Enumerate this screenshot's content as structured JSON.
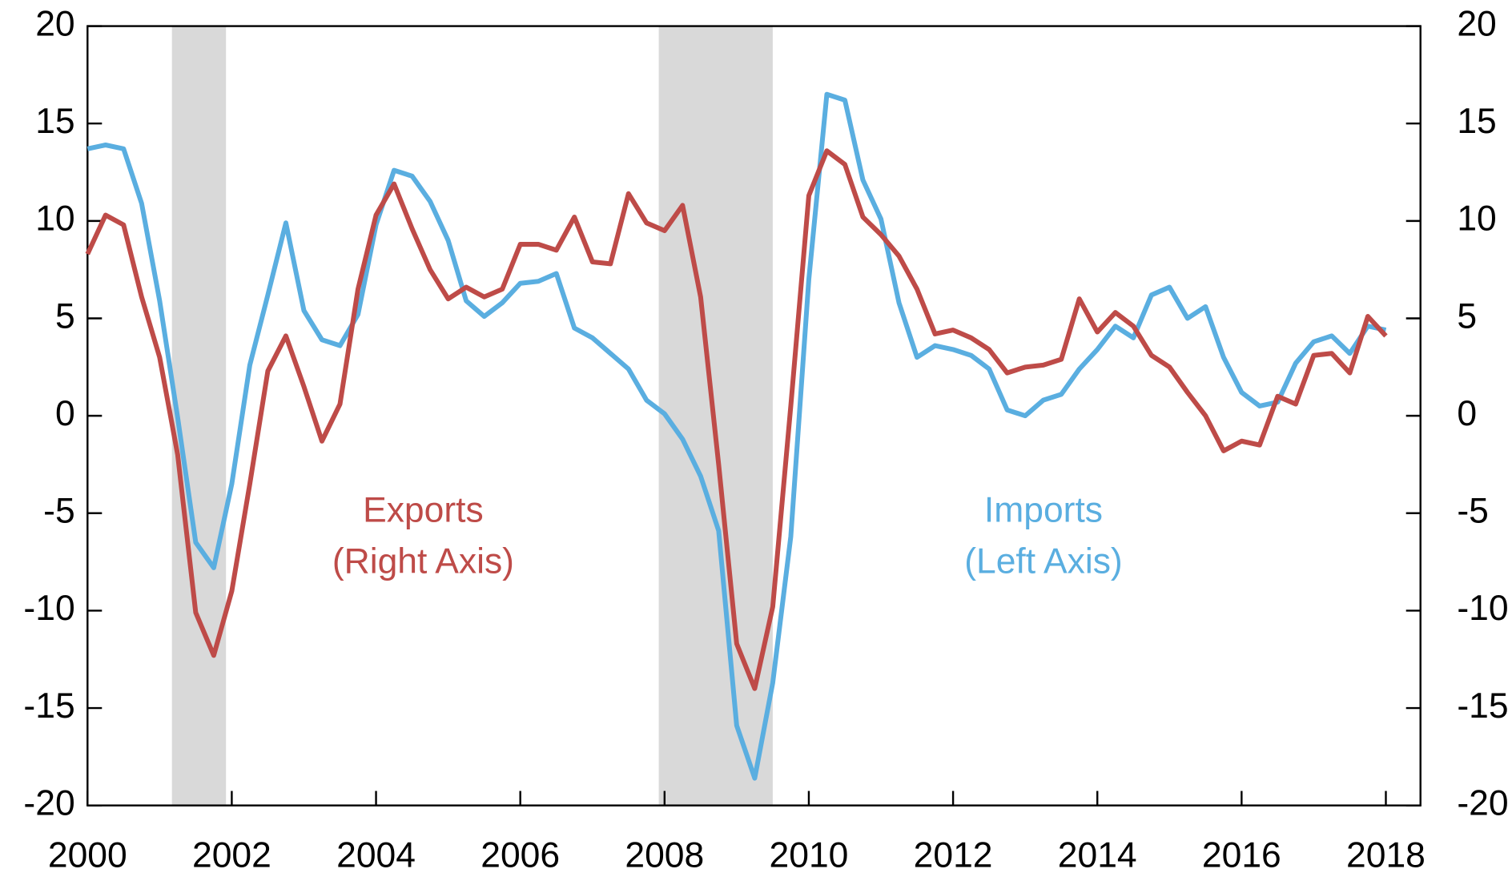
{
  "chart_data": {
    "type": "line",
    "x": [
      2000,
      2000.25,
      2000.5,
      2000.75,
      2001,
      2001.25,
      2001.5,
      2001.75,
      2002,
      2002.25,
      2002.5,
      2002.75,
      2003,
      2003.25,
      2003.5,
      2003.75,
      2004,
      2004.25,
      2004.5,
      2004.75,
      2005,
      2005.25,
      2005.5,
      2005.75,
      2006,
      2006.25,
      2006.5,
      2006.75,
      2007,
      2007.25,
      2007.5,
      2007.75,
      2008,
      2008.25,
      2008.5,
      2008.75,
      2009,
      2009.25,
      2009.5,
      2009.75,
      2010,
      2010.25,
      2010.5,
      2010.75,
      2011,
      2011.25,
      2011.5,
      2011.75,
      2012,
      2012.25,
      2012.5,
      2012.75,
      2013,
      2013.25,
      2013.5,
      2013.75,
      2014,
      2014.25,
      2014.5,
      2014.75,
      2015,
      2015.25,
      2015.5,
      2015.75,
      2016,
      2016.25,
      2016.5,
      2016.75,
      2017,
      2017.25,
      2017.5,
      2017.75,
      2018
    ],
    "series": [
      {
        "name": "Imports",
        "color": "#5aaee0",
        "axis": "y",
        "values": [
          13.7,
          13.9,
          13.7,
          10.9,
          5.9,
          -0.1,
          -6.5,
          -7.8,
          -3.5,
          2.6,
          6.2,
          9.9,
          5.4,
          3.9,
          3.6,
          5.2,
          9.8,
          12.6,
          12.3,
          11.0,
          9.0,
          5.9,
          5.1,
          5.8,
          6.8,
          6.9,
          7.3,
          4.5,
          4.0,
          3.2,
          2.4,
          0.8,
          0.1,
          -1.2,
          -3.1,
          -5.9,
          -15.9,
          -18.6,
          -13.7,
          -6.2,
          7.0,
          16.5,
          16.2,
          12.1,
          10.1,
          5.8,
          3.0,
          3.6,
          3.4,
          3.1,
          2.4,
          0.3,
          0.0,
          0.8,
          1.1,
          2.4,
          3.4,
          4.6,
          4.0,
          6.2,
          6.6,
          5.0,
          5.6,
          3.0,
          1.2,
          0.5,
          0.7,
          2.7,
          3.8,
          4.1,
          3.2,
          4.6,
          4.4
        ]
      },
      {
        "name": "Exports",
        "color": "#be4b48",
        "axis": "y2",
        "values": [
          8.3,
          10.3,
          9.8,
          6.1,
          3.0,
          -2.0,
          -10.1,
          -12.3,
          -9.0,
          -3.5,
          2.3,
          4.1,
          1.5,
          -1.3,
          0.6,
          6.5,
          10.3,
          11.9,
          9.6,
          7.5,
          6.0,
          6.6,
          6.1,
          6.5,
          8.8,
          8.8,
          8.5,
          10.2,
          7.9,
          7.8,
          11.4,
          9.9,
          9.5,
          10.8,
          6.1,
          -2.5,
          -11.7,
          -14.0,
          -9.8,
          0.5,
          11.3,
          13.6,
          12.9,
          10.2,
          9.3,
          8.2,
          6.5,
          4.2,
          4.4,
          4.0,
          3.4,
          2.2,
          2.5,
          2.6,
          2.9,
          6.0,
          4.3,
          5.3,
          4.6,
          3.1,
          2.5,
          1.2,
          0.0,
          -1.8,
          -1.3,
          -1.5,
          1.0,
          0.6,
          3.1,
          3.2,
          2.2,
          5.1,
          4.1
        ]
      }
    ],
    "annotations": [
      {
        "lines": [
          "Exports",
          "(Right Axis)"
        ],
        "series": 1
      },
      {
        "lines": [
          "Imports",
          "(Left Axis)"
        ],
        "series": 0
      }
    ],
    "shaded_ranges": [
      [
        2001.17,
        2001.92
      ],
      [
        2007.92,
        2009.5
      ]
    ],
    "shade_color": "#d9d9d9",
    "xlim": [
      2000,
      2018.48
    ],
    "xticks": [
      2000,
      2002,
      2004,
      2006,
      2008,
      2010,
      2012,
      2014,
      2016,
      2018
    ],
    "ylim": [
      -20,
      20
    ],
    "yticks": [
      -20,
      -15,
      -10,
      -5,
      0,
      5,
      10,
      15,
      20
    ],
    "y2lim": [
      -20,
      20
    ],
    "y2ticks": [
      -20,
      -15,
      -10,
      -5,
      0,
      5,
      10,
      15,
      20
    ]
  }
}
